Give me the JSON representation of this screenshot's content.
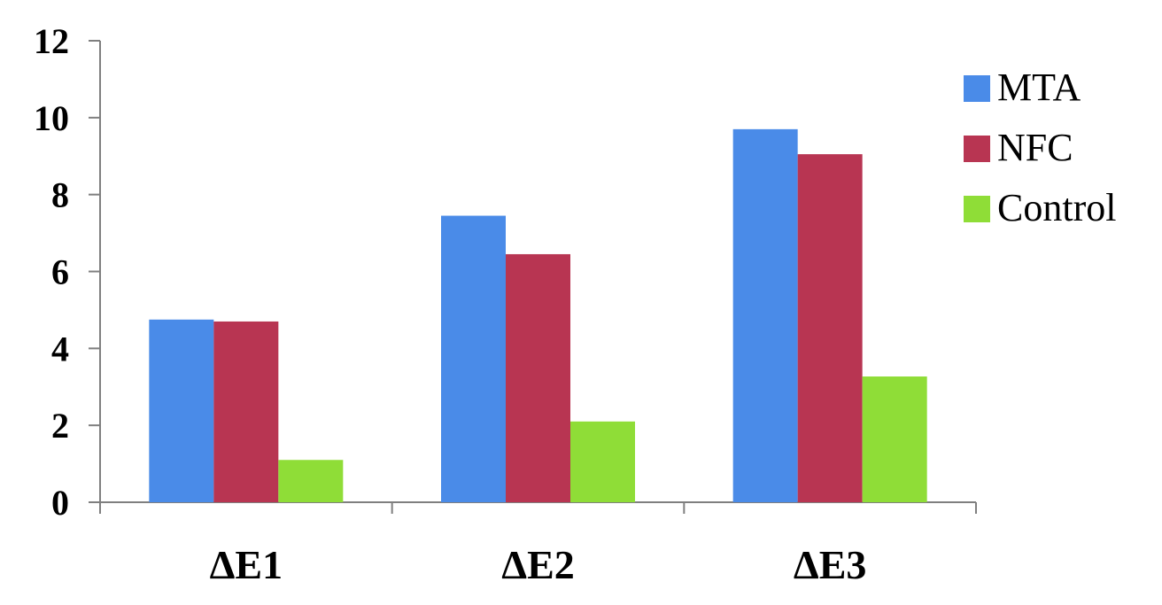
{
  "chart_data": {
    "type": "bar",
    "title": "",
    "xlabel": "",
    "ylabel": "",
    "categories": [
      "ΔE1",
      "ΔE2",
      "ΔE3"
    ],
    "series": [
      {
        "name": "MTA",
        "color": "#4A8BE8",
        "values": [
          4.75,
          7.45,
          9.7
        ]
      },
      {
        "name": "NFC",
        "color": "#B83552",
        "values": [
          4.7,
          6.45,
          9.05
        ]
      },
      {
        "name": "Control",
        "color": "#8FDD37",
        "values": [
          1.1,
          2.1,
          3.27
        ]
      }
    ],
    "ylim": [
      0,
      12
    ],
    "yticks": [
      "0",
      "2",
      "4",
      "6",
      "8",
      "10",
      "12"
    ],
    "grid": false,
    "legend_position": "right"
  }
}
